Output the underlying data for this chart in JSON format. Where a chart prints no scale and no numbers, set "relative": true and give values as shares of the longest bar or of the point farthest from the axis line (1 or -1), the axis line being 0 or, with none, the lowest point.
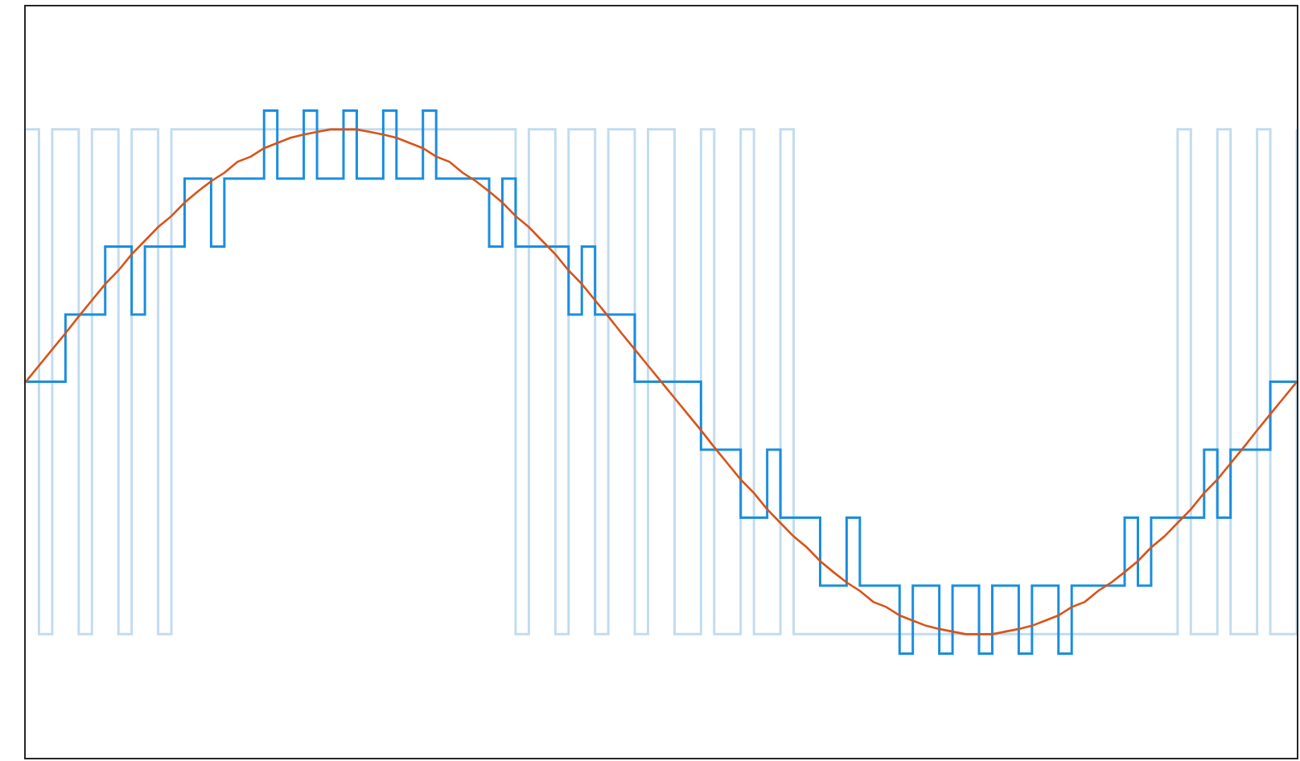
{
  "chart_data": {
    "type": "line",
    "relative": true,
    "categories": [
      null,
      null,
      null,
      null,
      null,
      null,
      null,
      null,
      null,
      null,
      null,
      null,
      null,
      null,
      null,
      null,
      null,
      null,
      null,
      null,
      null,
      null,
      null,
      null,
      null,
      null,
      null,
      null,
      null,
      null,
      null,
      null,
      null,
      null,
      null,
      null,
      null,
      null,
      null,
      null,
      null,
      null,
      null,
      null,
      null,
      null,
      null,
      null,
      null,
      null,
      null,
      null,
      null,
      null,
      null,
      null,
      null,
      null,
      null,
      null,
      null,
      null,
      null,
      null,
      null,
      null,
      null,
      null,
      null,
      null,
      null,
      null,
      null,
      null,
      null,
      null,
      null,
      null,
      null,
      null,
      null,
      null,
      null,
      null,
      null,
      null,
      null,
      null,
      null,
      null,
      null,
      null,
      null,
      null,
      null,
      null,
      null
    ],
    "series": [
      {
        "type": "step",
        "color": "#c2dcef",
        "values": [
          0.971,
          0.191,
          0.971,
          0.971,
          0.191,
          0.971,
          0.971,
          0.191,
          0.971,
          0.971,
          0.191,
          0.971,
          0.971,
          0.971,
          0.971,
          0.971,
          0.971,
          0.971,
          0.971,
          0.971,
          0.971,
          0.971,
          0.971,
          0.971,
          0.971,
          0.971,
          0.971,
          0.971,
          0.971,
          0.971,
          0.971,
          0.971,
          0.971,
          0.971,
          0.971,
          0.971,
          0.971,
          0.191,
          0.971,
          0.971,
          0.191,
          0.971,
          0.971,
          0.191,
          0.971,
          0.971,
          0.191,
          0.971,
          0.971,
          0.191,
          0.191,
          0.971,
          0.191,
          0.191,
          0.971,
          0.191,
          0.191,
          0.971,
          0.191,
          0.191,
          0.191,
          0.191,
          0.191,
          0.191,
          0.191,
          0.191,
          0.191,
          0.191,
          0.191,
          0.191,
          0.191,
          0.191,
          0.191,
          0.191,
          0.191,
          0.191,
          0.191,
          0.191,
          0.191,
          0.191,
          0.191,
          0.191,
          0.191,
          0.191,
          0.191,
          0.191,
          0.191,
          0.971,
          0.191,
          0.191,
          0.971,
          0.191,
          0.191,
          0.971,
          0.191,
          0.191,
          0.971
        ]
      },
      {
        "type": "step",
        "color": "#1a8ee0",
        "values": [
          0.581,
          0.581,
          0.581,
          0.685,
          0.685,
          0.685,
          0.79,
          0.79,
          0.685,
          0.79,
          0.79,
          0.79,
          0.895,
          0.895,
          0.79,
          0.895,
          0.895,
          0.895,
          1,
          0.895,
          0.895,
          1,
          0.895,
          0.895,
          1,
          0.895,
          0.895,
          1,
          0.895,
          0.895,
          1,
          0.895,
          0.895,
          0.895,
          0.895,
          0.79,
          0.895,
          0.79,
          0.79,
          0.79,
          0.79,
          0.685,
          0.79,
          0.685,
          0.685,
          0.685,
          0.581,
          0.581,
          0.581,
          0.581,
          0.581,
          0.476,
          0.476,
          0.476,
          0.371,
          0.371,
          0.476,
          0.371,
          0.371,
          0.371,
          0.266,
          0.266,
          0.371,
          0.266,
          0.266,
          0.266,
          0.161,
          0.266,
          0.266,
          0.161,
          0.266,
          0.266,
          0.161,
          0.266,
          0.266,
          0.161,
          0.266,
          0.266,
          0.161,
          0.266,
          0.266,
          0.266,
          0.266,
          0.371,
          0.266,
          0.371,
          0.371,
          0.371,
          0.371,
          0.476,
          0.371,
          0.476,
          0.476,
          0.476,
          0.581,
          0.581,
          0.581
        ]
      },
      {
        "color": "#d95319",
        "values": [
          0.581,
          0.606,
          0.631,
          0.656,
          0.682,
          0.707,
          0.732,
          0.753,
          0.778,
          0.799,
          0.82,
          0.837,
          0.858,
          0.875,
          0.891,
          0.904,
          0.921,
          0.929,
          0.942,
          0.95,
          0.958,
          0.963,
          0.967,
          0.971,
          0.971,
          0.971,
          0.967,
          0.963,
          0.958,
          0.95,
          0.942,
          0.929,
          0.921,
          0.904,
          0.891,
          0.875,
          0.858,
          0.837,
          0.82,
          0.799,
          0.778,
          0.753,
          0.732,
          0.707,
          0.682,
          0.656,
          0.631,
          0.606,
          0.581,
          0.556,
          0.531,
          0.506,
          0.48,
          0.455,
          0.43,
          0.409,
          0.384,
          0.363,
          0.342,
          0.325,
          0.304,
          0.287,
          0.271,
          0.258,
          0.241,
          0.233,
          0.22,
          0.212,
          0.204,
          0.199,
          0.195,
          0.191,
          0.191,
          0.191,
          0.195,
          0.199,
          0.204,
          0.212,
          0.22,
          0.233,
          0.241,
          0.258,
          0.271,
          0.287,
          0.304,
          0.325,
          0.342,
          0.363,
          0.384,
          0.409,
          0.43,
          0.455,
          0.48,
          0.506,
          0.531,
          0.556,
          0.581
        ]
      }
    ]
  }
}
